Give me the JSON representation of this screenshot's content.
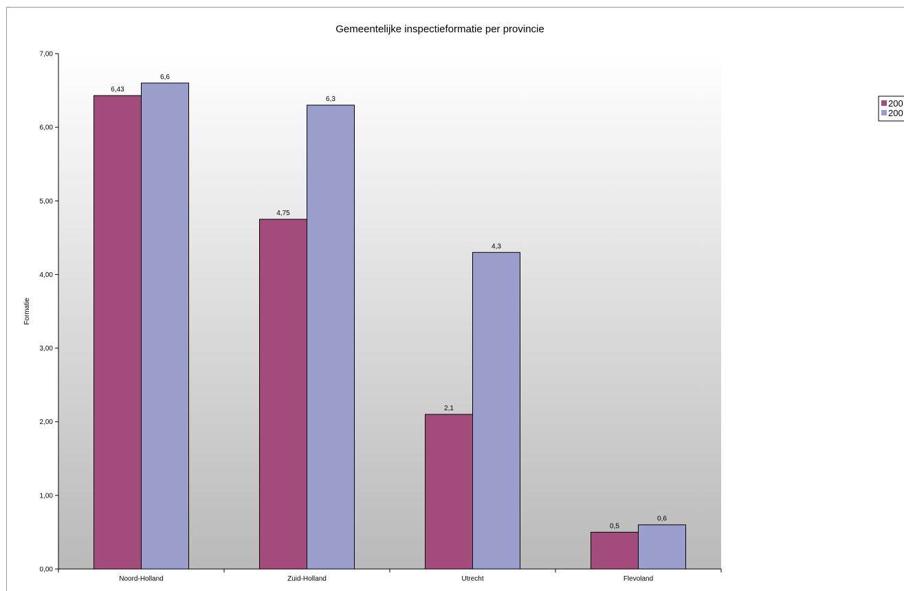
{
  "chart_data": {
    "type": "bar",
    "title": "Gemeentelijke inspectieformatie per provincie",
    "xlabel": "",
    "ylabel": "Formatie",
    "categories": [
      "Noord-Holland",
      "Zuid-Holland",
      "Utrecht",
      "Flevoland"
    ],
    "series": [
      {
        "name": "200",
        "color": "#a34b7a",
        "values": [
          6.43,
          4.75,
          2.1,
          0.5
        ],
        "labels": [
          "6,43",
          "4,75",
          "2,1",
          "0,5"
        ]
      },
      {
        "name": "200",
        "color": "#9a9ecd",
        "values": [
          6.6,
          6.3,
          4.3,
          0.6
        ],
        "labels": [
          "6,6",
          "6,3",
          "4,3",
          "0,6"
        ]
      }
    ],
    "ylim": [
      0,
      7
    ],
    "yticks": [
      0,
      1,
      2,
      3,
      4,
      5,
      6,
      7
    ],
    "ytick_labels": [
      "0,00",
      "1,00",
      "2,00",
      "3,00",
      "4,00",
      "5,00",
      "6,00",
      "7,00"
    ],
    "grid": false,
    "legend_position": "right",
    "plot_background": "gradient white to grey"
  }
}
